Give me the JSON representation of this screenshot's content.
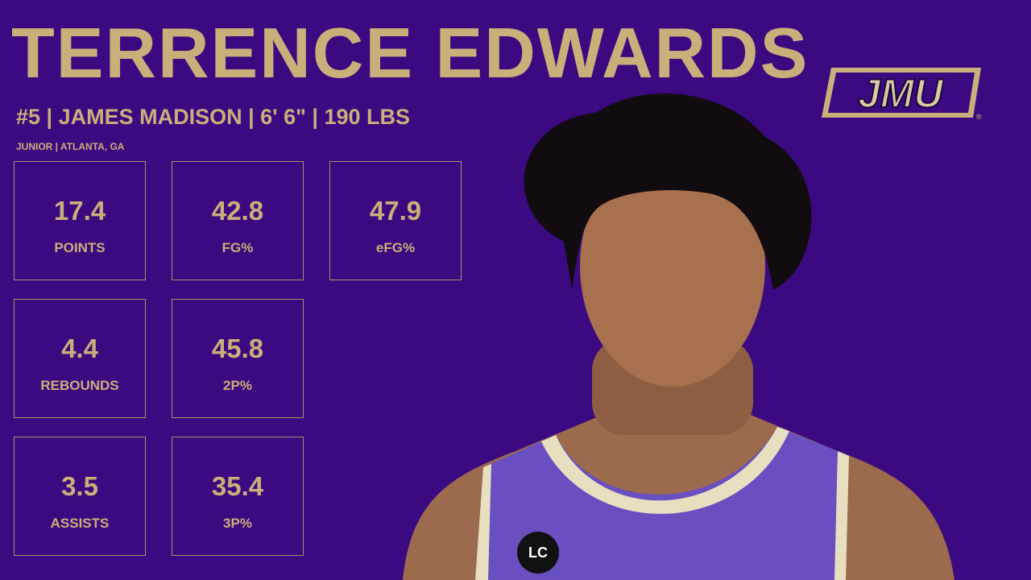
{
  "header": {
    "name": "TERRENCE EDWARDS",
    "info": "#5 | JAMES MADISON | 6' 6\" | 190 LBS",
    "sub": "JUNIOR | ATLANTA, GA"
  },
  "logo": {
    "text": "JMU",
    "mark": "®"
  },
  "stats": {
    "columns": [
      [
        {
          "value": "17.4",
          "label": "POINTS"
        },
        {
          "value": "4.4",
          "label": "REBOUNDS"
        },
        {
          "value": "3.5",
          "label": "ASSISTS"
        }
      ],
      [
        {
          "value": "42.8",
          "label": "FG%"
        },
        {
          "value": "45.8",
          "label": "2P%"
        },
        {
          "value": "35.4",
          "label": "3P%"
        }
      ],
      [
        {
          "value": "47.9",
          "label": "eFG%"
        }
      ]
    ]
  },
  "photo": {
    "patch": "LC"
  }
}
